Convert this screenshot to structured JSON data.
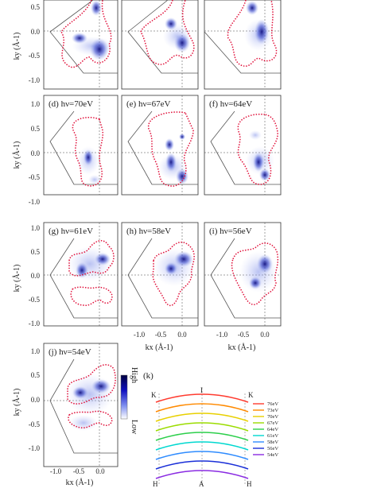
{
  "panels": [
    {
      "id": "a",
      "label": ""
    },
    {
      "id": "b",
      "label": ""
    },
    {
      "id": "c",
      "label": ""
    },
    {
      "id": "d",
      "label": "(d) hν=70eV"
    },
    {
      "id": "e",
      "label": "(e) hν=67eV"
    },
    {
      "id": "f",
      "label": "(f) hν=64eV"
    },
    {
      "id": "g",
      "label": "(g) hν=61eV"
    },
    {
      "id": "h",
      "label": "(h) hν=58eV"
    },
    {
      "id": "i",
      "label": "(i) hν=56eV"
    },
    {
      "id": "j",
      "label": "(j) hν=54eV"
    }
  ],
  "axes": {
    "y_label": "ky (Å-1)",
    "x_label": "kx (Å-1)",
    "y_ticks": [
      "0.5",
      "0.0",
      "-0.5",
      "-1.0"
    ],
    "y_ticks_full": [
      "1.0",
      "0.5",
      "0.0",
      "-0.5",
      "-1.0"
    ],
    "x_ticks": [
      "-1.0",
      "-0.5",
      "0.0"
    ]
  },
  "colorbar": {
    "high": "High",
    "low": "Low"
  },
  "panel_k": {
    "label": "(k)",
    "points": {
      "K_left": "K",
      "K_right": "K",
      "top_mark": "I",
      "H_left": "H",
      "H_right": "H",
      "A": "A"
    },
    "legend": [
      {
        "label": "76eV",
        "color": "#ff3b2f"
      },
      {
        "label": "73eV",
        "color": "#ff8a00"
      },
      {
        "label": "70eV",
        "color": "#e8d000"
      },
      {
        "label": "67eV",
        "color": "#9bdc00"
      },
      {
        "label": "64eV",
        "color": "#2ccf4b"
      },
      {
        "label": "61eV",
        "color": "#00d8d0"
      },
      {
        "label": "58eV",
        "color": "#2f8cff"
      },
      {
        "label": "56eV",
        "color": "#1a2fd8"
      },
      {
        "label": "54eV",
        "color": "#8a2be2"
      }
    ]
  }
}
